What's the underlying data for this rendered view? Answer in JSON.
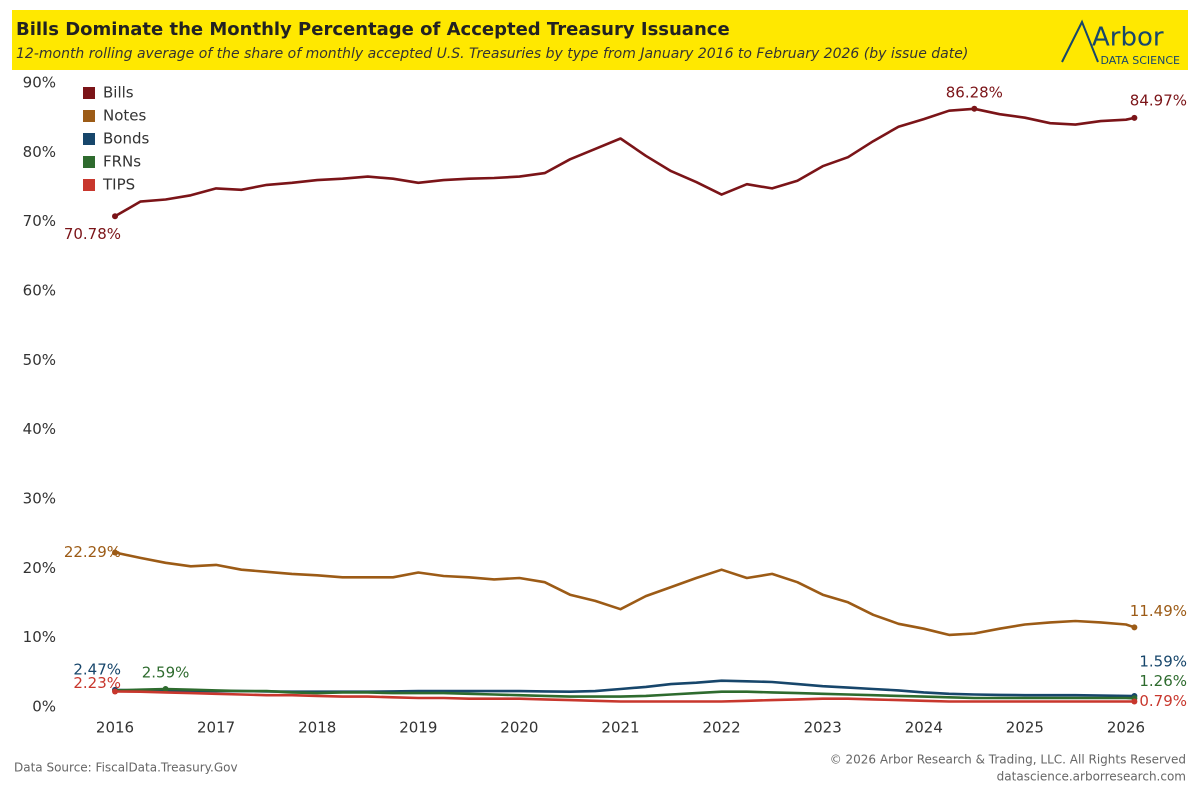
{
  "chart_data": {
    "type": "line",
    "title": "Bills Dominate the Monthly Percentage of Accepted Treasury Issuance",
    "subtitle": "12-month rolling average of the share of monthly accepted U.S. Treasuries by type from January 2016 to February 2026 (by issue date)",
    "logo": {
      "name": "Arbor",
      "tagline": "DATA SCIENCE"
    },
    "source": "Data Source: FiscalData.Treasury.Gov",
    "copyright": "© 2026 Arbor Research & Trading, LLC. All Rights Reserved",
    "website": "datascience.arborresearch.com",
    "x": [
      2016,
      2016.25,
      2016.5,
      2016.75,
      2017,
      2017.25,
      2017.5,
      2017.75,
      2018,
      2018.25,
      2018.5,
      2018.75,
      2019,
      2019.25,
      2019.5,
      2019.75,
      2020,
      2020.25,
      2020.5,
      2020.75,
      2021,
      2021.25,
      2021.5,
      2021.75,
      2022,
      2022.25,
      2022.5,
      2022.75,
      2023,
      2023.25,
      2023.5,
      2023.75,
      2024,
      2024.25,
      2024.5,
      2024.75,
      2025,
      2025.25,
      2025.5,
      2025.75,
      2026,
      2026.083
    ],
    "xlim": [
      2015.8,
      2026.2
    ],
    "xticks": [
      2016,
      2017,
      2018,
      2019,
      2020,
      2021,
      2022,
      2023,
      2024,
      2025,
      2026
    ],
    "ylim": [
      0,
      90
    ],
    "yticks": [
      {
        "value": 0,
        "label": "0%"
      },
      {
        "value": 10,
        "label": "10%"
      },
      {
        "value": 20,
        "label": "20%"
      },
      {
        "value": 30,
        "label": "30%"
      },
      {
        "value": 40,
        "label": "40%"
      },
      {
        "value": 50,
        "label": "50%"
      },
      {
        "value": 60,
        "label": "60%"
      },
      {
        "value": 70,
        "label": "70%"
      },
      {
        "value": 80,
        "label": "80%"
      },
      {
        "value": 90,
        "label": "90%"
      }
    ],
    "grid": false,
    "legend": "top-left",
    "series": [
      {
        "name": "Bills",
        "color": "#7b1418",
        "values": [
          70.78,
          72.9,
          73.2,
          73.8,
          74.8,
          74.6,
          75.3,
          75.6,
          76.0,
          76.2,
          76.5,
          76.2,
          75.6,
          76.0,
          76.2,
          76.3,
          76.5,
          77.0,
          79.0,
          80.5,
          82.0,
          79.5,
          77.3,
          75.7,
          73.9,
          75.4,
          74.8,
          75.9,
          78.0,
          79.3,
          81.6,
          83.7,
          84.8,
          86.0,
          86.28,
          85.5,
          85.0,
          84.2,
          84.0,
          84.5,
          84.7,
          84.97
        ],
        "value_labels": [
          "70.78%",
          null,
          null,
          null,
          null,
          null,
          null,
          null,
          null,
          null,
          null,
          null,
          null,
          null,
          null,
          null,
          null,
          null,
          null,
          null,
          null,
          null,
          null,
          null,
          null,
          null,
          null,
          null,
          null,
          null,
          null,
          null,
          null,
          null,
          "86.28%",
          null,
          null,
          null,
          null,
          null,
          null,
          "84.97%"
        ]
      },
      {
        "name": "Notes",
        "color": "#9c5b16",
        "values": [
          22.29,
          21.5,
          20.8,
          20.3,
          20.5,
          19.8,
          19.5,
          19.2,
          19.0,
          18.7,
          18.7,
          18.7,
          19.4,
          18.9,
          18.7,
          18.4,
          18.6,
          18.0,
          16.2,
          15.3,
          14.1,
          16.0,
          17.3,
          18.6,
          19.8,
          18.6,
          19.2,
          18.0,
          16.2,
          15.1,
          13.3,
          12.0,
          11.3,
          10.4,
          10.6,
          11.3,
          11.9,
          12.2,
          12.4,
          12.2,
          11.9,
          11.49
        ],
        "value_labels": [
          "22.29%",
          null,
          null,
          null,
          null,
          null,
          null,
          null,
          null,
          null,
          null,
          null,
          null,
          null,
          null,
          null,
          null,
          null,
          null,
          null,
          null,
          null,
          null,
          null,
          null,
          null,
          null,
          null,
          null,
          null,
          null,
          null,
          null,
          null,
          null,
          null,
          null,
          null,
          null,
          null,
          null,
          "11.49%"
        ]
      },
      {
        "name": "Bonds",
        "color": "#17466b",
        "values": [
          2.47,
          2.4,
          2.35,
          2.3,
          2.3,
          2.3,
          2.25,
          2.2,
          2.2,
          2.2,
          2.2,
          2.25,
          2.3,
          2.3,
          2.3,
          2.3,
          2.3,
          2.25,
          2.2,
          2.3,
          2.6,
          2.9,
          3.3,
          3.5,
          3.8,
          3.7,
          3.6,
          3.3,
          3.0,
          2.8,
          2.6,
          2.4,
          2.1,
          1.9,
          1.8,
          1.75,
          1.7,
          1.7,
          1.7,
          1.65,
          1.6,
          1.59
        ],
        "value_labels": [
          "2.47%",
          null,
          null,
          null,
          null,
          null,
          null,
          null,
          null,
          null,
          null,
          null,
          null,
          null,
          null,
          null,
          null,
          null,
          null,
          null,
          null,
          null,
          null,
          null,
          null,
          null,
          null,
          null,
          null,
          null,
          null,
          null,
          null,
          null,
          null,
          null,
          null,
          null,
          null,
          null,
          null,
          "1.59%"
        ]
      },
      {
        "name": "FRNs",
        "color": "#2e6b2e",
        "values": [
          2.4,
          2.5,
          2.59,
          2.5,
          2.4,
          2.3,
          2.3,
          2.1,
          2.0,
          2.1,
          2.1,
          2.0,
          2.0,
          2.0,
          1.9,
          1.8,
          1.7,
          1.6,
          1.5,
          1.5,
          1.5,
          1.6,
          1.8,
          2.0,
          2.2,
          2.2,
          2.1,
          2.0,
          1.9,
          1.8,
          1.7,
          1.6,
          1.5,
          1.4,
          1.3,
          1.3,
          1.3,
          1.3,
          1.3,
          1.3,
          1.3,
          1.26
        ],
        "value_labels": [
          null,
          null,
          "2.59%",
          null,
          null,
          null,
          null,
          null,
          null,
          null,
          null,
          null,
          null,
          null,
          null,
          null,
          null,
          null,
          null,
          null,
          null,
          null,
          null,
          null,
          null,
          null,
          null,
          null,
          null,
          null,
          null,
          null,
          null,
          null,
          null,
          null,
          null,
          null,
          null,
          null,
          null,
          "1.26%"
        ]
      },
      {
        "name": "TIPS",
        "color": "#c8372d",
        "values": [
          2.23,
          2.2,
          2.1,
          2.0,
          1.9,
          1.8,
          1.7,
          1.7,
          1.6,
          1.5,
          1.5,
          1.4,
          1.3,
          1.3,
          1.2,
          1.2,
          1.2,
          1.1,
          1.0,
          0.9,
          0.8,
          0.8,
          0.8,
          0.8,
          0.8,
          0.9,
          1.0,
          1.1,
          1.2,
          1.2,
          1.1,
          1.0,
          0.9,
          0.8,
          0.8,
          0.8,
          0.8,
          0.8,
          0.8,
          0.8,
          0.8,
          0.79
        ],
        "value_labels": [
          "2.23%",
          null,
          null,
          null,
          null,
          null,
          null,
          null,
          null,
          null,
          null,
          null,
          null,
          null,
          null,
          null,
          null,
          null,
          null,
          null,
          null,
          null,
          null,
          null,
          null,
          null,
          null,
          null,
          null,
          null,
          null,
          null,
          null,
          null,
          null,
          null,
          null,
          null,
          null,
          null,
          null,
          "0.79%"
        ]
      }
    ]
  }
}
